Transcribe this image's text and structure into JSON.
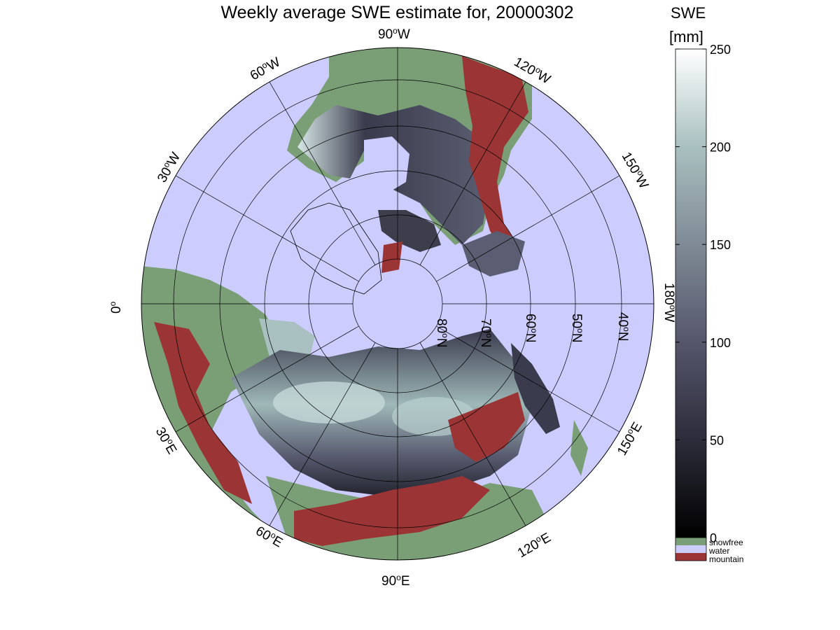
{
  "title": "Weekly average SWE estimate for, 20000302",
  "map": {
    "projection": "north-polar-stereographic",
    "meridian_labels": [
      {
        "name": "lon-90w",
        "text": "90°W",
        "deg": "90",
        "hemi": "W"
      },
      {
        "name": "lon-120w",
        "text": "120°W",
        "deg": "120",
        "hemi": "W"
      },
      {
        "name": "lon-150w",
        "text": "150°W",
        "deg": "150",
        "hemi": "W"
      },
      {
        "name": "lon-180w",
        "text": "180°W",
        "deg": "180",
        "hemi": "W"
      },
      {
        "name": "lon-150e",
        "text": "150°E",
        "deg": "150",
        "hemi": "E"
      },
      {
        "name": "lon-120e",
        "text": "120°E",
        "deg": "120",
        "hemi": "E"
      },
      {
        "name": "lon-90e",
        "text": "90°E",
        "deg": "90",
        "hemi": "E"
      },
      {
        "name": "lon-60e",
        "text": "60°E",
        "deg": "60",
        "hemi": "E"
      },
      {
        "name": "lon-30e",
        "text": "30°E",
        "deg": "30",
        "hemi": "E"
      },
      {
        "name": "lon-0",
        "text": "0°",
        "deg": "0",
        "hemi": ""
      },
      {
        "name": "lon-30w",
        "text": "30°W",
        "deg": "30",
        "hemi": "W"
      },
      {
        "name": "lon-60w",
        "text": "60°W",
        "deg": "60",
        "hemi": "W"
      }
    ],
    "parallel_labels": [
      {
        "name": "lat-80n",
        "deg": "80",
        "hemi": "N"
      },
      {
        "name": "lat-70n",
        "deg": "70",
        "hemi": "N"
      },
      {
        "name": "lat-60n",
        "deg": "60",
        "hemi": "N"
      },
      {
        "name": "lat-50n",
        "deg": "50",
        "hemi": "N"
      },
      {
        "name": "lat-40n",
        "deg": "40",
        "hemi": "N"
      }
    ]
  },
  "colorbar": {
    "title_line1": "SWE",
    "title_line2": "[mm]",
    "min": 0,
    "max": 250,
    "ticks": [
      "0",
      "50",
      "100",
      "150",
      "200",
      "250"
    ],
    "gradient": [
      "#000000",
      "#2c2c3a",
      "#55566c",
      "#7f8a95",
      "#a9c0c0",
      "#ffffff"
    ],
    "legend": [
      {
        "label": "snowfree",
        "color": "#7a9e76"
      },
      {
        "label": "water",
        "color": "#ccccff"
      },
      {
        "label": "mountain",
        "color": "#9b3535"
      }
    ]
  },
  "colors": {
    "water": "#ccccff",
    "snowfree": "#7a9e76",
    "mountain": "#9b3535",
    "snow_dark": "#2a2a38",
    "snow_light": "#c9dcdc"
  }
}
